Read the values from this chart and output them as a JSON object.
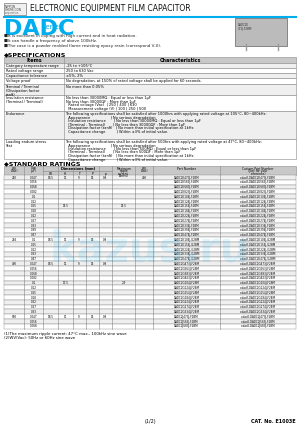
{
  "title": "ELECTRONIC EQUIPMENT FILM CAPACITOR",
  "series_name": "DADC",
  "series_suffix": "Series",
  "brand_color": "#00AEEF",
  "features": [
    "■It is excellent in coping with high current and in heat radiation.",
    "■It can handle a frequency of above 100kHz.",
    "■The case is a powder molded flame resisting epoxy resin (correspond V-0)."
  ],
  "spec_title": "◆SPECIFICATIONS",
  "spec_rows": [
    [
      "Category temperature range",
      "-25 to +105°C"
    ],
    [
      "Rated voltage range",
      "250 to 630 Vac"
    ],
    [
      "Capacitance tolerance",
      "±5%, 2%"
    ],
    [
      "Voltage proof",
      "No degradation, at 150% of rated voltage shall be applied for 60 seconds."
    ],
    [
      "Terminal / Terminal\n(Dissipation factor\ntanδ)",
      "No more than 0.05%"
    ],
    [
      "Insulation resistance\n(Terminal / Terminal)",
      "No less than 30000MΩ : Equal or less than 1μF\nNo less than 30000ΩF : More than 1μF\n  Rated voltage (Vac)  | 250 | 400 | 630\n  Measurement voltage (V) | 100 | 250 | 500"
    ],
    [
      "Endurance",
      "The following specifications shall be satisfied after 1000hrs with applying rated voltage at 105°C, 80~400kHz:\n  Appearance                  | No serious degradation\n  Insulation resistance       | No less than 30000MΩ : Equal or less than 1μF\n  (Terminal - Terminal)       | No less than 30000ΩF : More than 1μF\n  Dissipation factor (tanδ)   | No more than initial specification at 1kHz.\n  Capacitance change          | Within ±3% of initial value."
    ],
    [
      "Loading endure stress\nTest",
      "The following specifications shall be satisfied after 500hrs with applying rated voltage at 47°C, 80~400kHz:\n  Appearance                  | No serious degradation\n  Insulation resistance       | No less than 500MΩ : Equal or less than 1μF\n  (Terminal - Terminal)       | No less than 500ΩF : More than 1μF\n  Dissipation factor (tanδ)   | No more than initial specification at 1kHz.\n  Capacitance change          | Within ±3% of initial value."
    ]
  ],
  "ratings_title": "◆STANDARD RATINGS",
  "table_col_widths": [
    14,
    13,
    10,
    10,
    9,
    9,
    9,
    16,
    12,
    46,
    52
  ],
  "table_col_labels": [
    "WV\n(Vac)",
    "Cap\n(μF)",
    "W",
    "H",
    "T",
    "P",
    "p",
    "Maximum\nripple\ncurrent\n(Arms)",
    "WV\n(Vac)",
    "Part Number",
    "Custom Part Number\n(Just for your reference)"
  ],
  "dim_label": "Dimensions (mm)",
  "table_data": [
    [
      "250",
      "0.047",
      "18.5",
      "11",
      "9",
      "15",
      "0.8",
      "",
      "400",
      "DADC2E473J-F2BM",
      "x-dacK-DADC2E473J-F2BM"
    ],
    [
      "",
      "0.056",
      "",
      "",
      "",
      "",
      "",
      "",
      "",
      "DADC2E563J-F2BM",
      "x-dacK-DADC2E563J-F2BM"
    ],
    [
      "",
      "0.068",
      "",
      "",
      "",
      "",
      "",
      "",
      "",
      "DADC2E683J-F2BM",
      "x-dacK-DADC2E683J-F2BM"
    ],
    [
      "",
      "0.082",
      "",
      "",
      "",
      "",
      "",
      "",
      "",
      "DADC2E823J-F2BM",
      "x-dacK-DADC2E823J-F2BM"
    ],
    [
      "",
      "0.1",
      "",
      "",
      "",
      "",
      "",
      "",
      "",
      "DADC2E104J-F2BM",
      "x-dacK-DADC2E104J-F2BM"
    ],
    [
      "",
      "0.12",
      "",
      "",
      "",
      "",
      "",
      "",
      "",
      "DADC2E124J-F2BM",
      "x-dacK-DADC2E124J-F2BM"
    ],
    [
      "",
      "0.15",
      "",
      "15.5",
      "",
      "",
      "",
      "15.5",
      "",
      "DADC2E154J-F2BM",
      "x-dacK-DADC2E154J-F2BM"
    ],
    [
      "",
      "0.18",
      "",
      "",
      "",
      "",
      "",
      "",
      "",
      "DADC2E184J-F2BM",
      "x-dacK-DADC2E184J-F2BM"
    ],
    [
      "",
      "0.22",
      "",
      "",
      "",
      "",
      "",
      "",
      "",
      "DADC2E224J-F2BM",
      "x-dacK-DADC2E224J-F2BM"
    ],
    [
      "",
      "0.27",
      "",
      "",
      "",
      "",
      "",
      "",
      "",
      "DADC2E274J-F2BM",
      "x-dacK-DADC2E274J-F2BM"
    ],
    [
      "",
      "0.33",
      "",
      "",
      "",
      "",
      "",
      "",
      "",
      "DADC2E334J-F2BM",
      "x-dacK-DADC2E334J-F2BM"
    ],
    [
      "",
      "0.39",
      "",
      "",
      "",
      "",
      "",
      "",
      "",
      "DADC2E394J-F2BM",
      "x-dacK-DADC2E394J-F2BM"
    ],
    [
      "",
      "0.47",
      "",
      "",
      "",
      "",
      "",
      "",
      "",
      "DADC2E474J-F2BM",
      "x-dacK-DADC2E474J-F2BM"
    ],
    [
      "266",
      "0.1",
      "18.5",
      "11",
      "9",
      "15",
      "0.8",
      "",
      "",
      "DADC2E104J-G2BM",
      "x-dacK-DADC2E104J-G2BM"
    ],
    [
      "",
      "0.15",
      "",
      "",
      "",
      "",
      "",
      "",
      "",
      "DADC2E154J-G2BM",
      "x-dacK-DADC2E154J-G2BM"
    ],
    [
      "",
      "0.22",
      "",
      "",
      "",
      "",
      "",
      "",
      "",
      "DADC2E224J-G2BM",
      "x-dacK-DADC2E224J-G2BM"
    ],
    [
      "",
      "0.33",
      "",
      "",
      "",
      "",
      "",
      "",
      "",
      "DADC2E334J-G2BM",
      "x-dacK-DADC2E334J-G2BM"
    ],
    [
      "",
      "0.47",
      "",
      "",
      "",
      "",
      "",
      "",
      "",
      "DADC2E474J-G2BM",
      "x-dacK-DADC2E474J-G2BM"
    ],
    [
      "400",
      "0.047",
      "18.5",
      "11",
      "9",
      "15",
      "0.8",
      "",
      "",
      "DADC2G473J-F2BM",
      "x-dacK-DADC2G473J-F2BM"
    ],
    [
      "",
      "0.056",
      "",
      "",
      "",
      "",
      "",
      "",
      "",
      "DADC2G563J-F2BM",
      "x-dacK-DADC2G563J-F2BM"
    ],
    [
      "",
      "0.068",
      "",
      "",
      "",
      "",
      "",
      "",
      "",
      "DADC2G683J-F2BM",
      "x-dacK-DADC2G683J-F2BM"
    ],
    [
      "",
      "0.082",
      "",
      "",
      "",
      "",
      "",
      "",
      "",
      "DADC2G823J-F2BM",
      "x-dacK-DADC2G823J-F2BM"
    ],
    [
      "",
      "0.1",
      "",
      "17.5",
      "",
      "",
      "",
      "2.9",
      "",
      "DADC2G104J-F2BM",
      "x-dacK-DADC2G104J-F2BM"
    ],
    [
      "",
      "0.12",
      "",
      "",
      "",
      "",
      "",
      "",
      "",
      "DADC2G124J-F2BM",
      "x-dacK-DADC2G124J-F2BM"
    ],
    [
      "",
      "0.15",
      "",
      "",
      "",
      "",
      "",
      "",
      "",
      "DADC2G154J-F2BM",
      "x-dacK-DADC2G154J-F2BM"
    ],
    [
      "",
      "0.18",
      "",
      "",
      "",
      "",
      "",
      "",
      "",
      "DADC2G184J-F2BM",
      "x-dacK-DADC2G184J-F2BM"
    ],
    [
      "",
      "0.22",
      "",
      "",
      "",
      "",
      "",
      "",
      "",
      "DADC2G224J-F2BM",
      "x-dacK-DADC2G224J-F2BM"
    ],
    [
      "",
      "0.27",
      "",
      "",
      "",
      "",
      "",
      "",
      "",
      "DADC2G274J-F2BM",
      "x-dacK-DADC2G274J-F2BM"
    ],
    [
      "",
      "0.33",
      "",
      "",
      "",
      "",
      "",
      "",
      "",
      "DADC2G334J-F2BM",
      "x-dacK-DADC2G334J-F2BM"
    ],
    [
      "630",
      "0.047",
      "18.5",
      "11",
      "9",
      "15",
      "0.8",
      "",
      "",
      "DADC2J473J-F2BM",
      "x-dacK-DADC2J473J-F2BM"
    ],
    [
      "",
      "0.056",
      "",
      "",
      "",
      "",
      "",
      "",
      "",
      "DADC2J563J-F2BM",
      "x-dacK-DADC2J563J-F2BM"
    ],
    [
      "",
      "0.068",
      "",
      "",
      "",
      "",
      "",
      "",
      "",
      "DADC2J683J-F2BM",
      "x-dacK-DADC2J683J-F2BM"
    ]
  ],
  "footer_note1": "(1)The maximum ripple current: 47°C max., 100kHz sine wave",
  "footer_note2": "(2)WV(Vac): 50Hz or 60Hz sine wave",
  "page_info": "(1/2)",
  "cat_no": "CAT. No. E1003E",
  "watermark": "kazus.ru",
  "bg_color": "#ffffff",
  "grid_color": "#888888",
  "hdr_bg": "#C8C8C8",
  "alt_row_bg": "#EFEFEF"
}
